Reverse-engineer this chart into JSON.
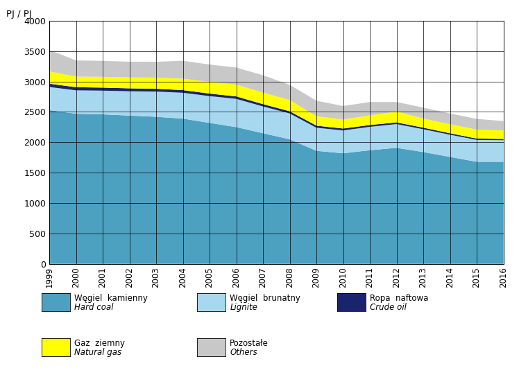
{
  "years": [
    1999,
    2000,
    2001,
    2002,
    2003,
    2004,
    2005,
    2006,
    2007,
    2008,
    2009,
    2010,
    2011,
    2012,
    2013,
    2014,
    2015,
    2016
  ],
  "hard_coal": [
    2530,
    2470,
    2460,
    2440,
    2420,
    2390,
    2320,
    2250,
    2150,
    2050,
    1860,
    1820,
    1870,
    1910,
    1840,
    1760,
    1680,
    1680
  ],
  "lignite": [
    380,
    385,
    390,
    400,
    415,
    425,
    440,
    465,
    440,
    425,
    380,
    375,
    385,
    390,
    375,
    365,
    360,
    355
  ],
  "crude_oil": [
    55,
    52,
    50,
    48,
    46,
    44,
    42,
    40,
    38,
    36,
    34,
    32,
    30,
    28,
    26,
    24,
    22,
    20
  ],
  "natural_gas": [
    200,
    175,
    178,
    180,
    182,
    188,
    192,
    195,
    190,
    185,
    155,
    150,
    158,
    180,
    150,
    148,
    148,
    140
  ],
  "others": [
    355,
    265,
    262,
    258,
    262,
    295,
    285,
    280,
    285,
    250,
    255,
    220,
    220,
    155,
    180,
    178,
    175,
    155
  ],
  "color_hard_coal": "#4ca0c0",
  "color_lignite": "#a8d8f0",
  "color_crude_oil": "#1a246e",
  "color_natural_gas": "#ffff00",
  "color_others": "#c8c8c8",
  "ylabel": "PJ / PJ",
  "ylim": [
    0,
    4000
  ],
  "yticks": [
    0,
    500,
    1000,
    1500,
    2000,
    2500,
    3000,
    3500,
    4000
  ],
  "legend_row1": [
    {
      "pl": "Węgiel  kamienny",
      "en": "Hard coal",
      "color": "#4ca0c0"
    },
    {
      "pl": "Węgiel  brunatny",
      "en": "Lignite",
      "color": "#a8d8f0"
    },
    {
      "pl": "Ropa  naftowa",
      "en": "Crude oil",
      "color": "#1a246e"
    }
  ],
  "legend_row2": [
    {
      "pl": "Gaz  ziemny",
      "en": "Natural gas",
      "color": "#ffff00"
    },
    {
      "pl": "Pozostałe",
      "en": "Others",
      "color": "#c8c8c8"
    }
  ]
}
